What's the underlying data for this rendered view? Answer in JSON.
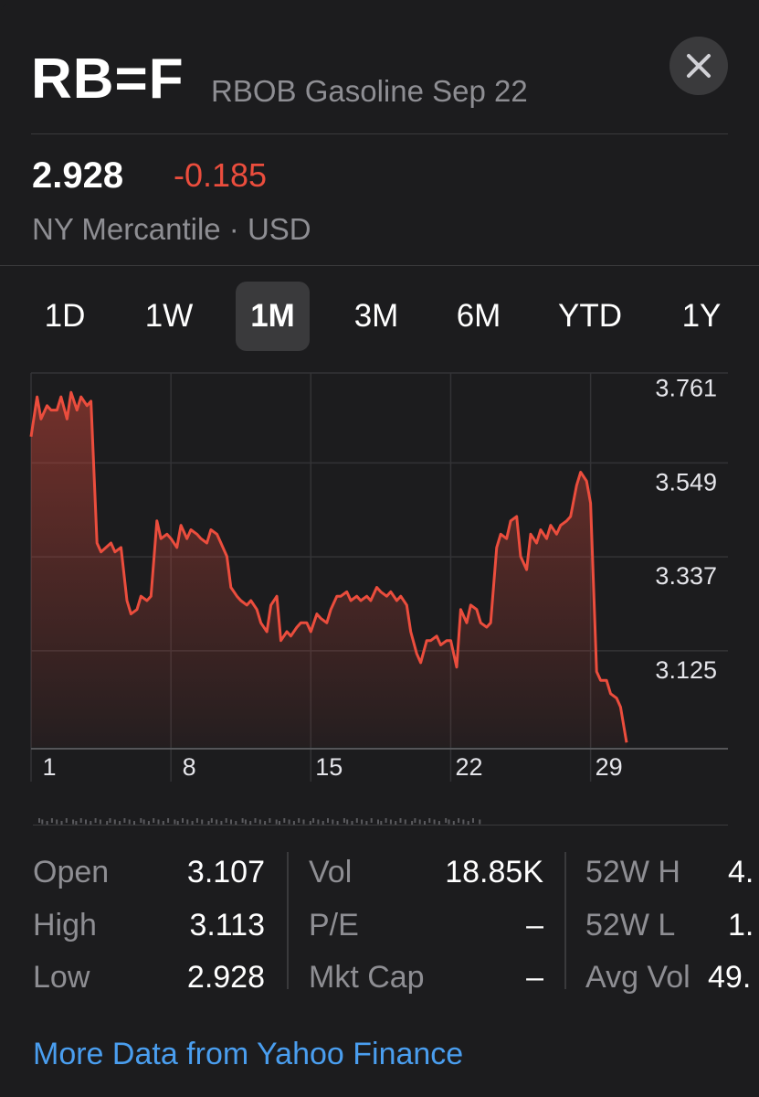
{
  "header": {
    "symbol": "RB=F",
    "name": "RBOB Gasoline Sep 22"
  },
  "quote": {
    "price": "2.928",
    "change": "-0.185",
    "exchange": "NY Mercantile · USD"
  },
  "colors": {
    "background": "#1c1c1e",
    "negative": "#eb4d3d",
    "link": "#4a9eef",
    "secondary_text": "#8e8e93"
  },
  "tabs": [
    {
      "label": "1D",
      "active": false
    },
    {
      "label": "1W",
      "active": false
    },
    {
      "label": "1M",
      "active": true
    },
    {
      "label": "3M",
      "active": false
    },
    {
      "label": "6M",
      "active": false
    },
    {
      "label": "YTD",
      "active": false
    },
    {
      "label": "1Y",
      "active": false
    }
  ],
  "chart_data": {
    "type": "area",
    "y_ticks": [
      "3.761",
      "3.549",
      "3.337",
      "3.125"
    ],
    "x_ticks": [
      "1",
      "8",
      "15",
      "22",
      "29"
    ],
    "ylim": [
      2.97,
      3.82
    ],
    "xlim": [
      0,
      32
    ],
    "series": [
      {
        "color": "#eb4d3d",
        "x": [
          0,
          0.3,
          0.5,
          0.8,
          1.0,
          1.3,
          1.5,
          1.8,
          2.0,
          2.3,
          2.5,
          2.8,
          3.0,
          3.3,
          3.5,
          4.0,
          4.2,
          4.5,
          4.8,
          5.0,
          5.3,
          5.5,
          5.8,
          6.0,
          6.3,
          6.5,
          6.8,
          7.0,
          7.3,
          7.5,
          7.8,
          8.0,
          8.3,
          8.5,
          8.8,
          9.0,
          9.3,
          9.5,
          9.8,
          10.0,
          10.3,
          10.5,
          10.8,
          11.0,
          11.3,
          11.5,
          11.8,
          12.0,
          12.3,
          12.5,
          12.8,
          13.0,
          13.3,
          13.5,
          13.8,
          14.0,
          14.3,
          14.5,
          14.8,
          15.0,
          15.3,
          15.5,
          15.8,
          16.0,
          16.3,
          16.5,
          16.8,
          17.0,
          17.3,
          17.5,
          17.8,
          18.0,
          18.3,
          18.5,
          18.8,
          19.0,
          19.3,
          19.5,
          19.8,
          20.0,
          20.3,
          20.5,
          20.8,
          21.0,
          21.3,
          21.5,
          21.8,
          22.0,
          22.3,
          22.5,
          22.8,
          23.0,
          23.3,
          23.5,
          23.8,
          24.0,
          24.3,
          24.5,
          24.8,
          25.0,
          25.3,
          25.5,
          25.8,
          26.0,
          26.3,
          26.5,
          26.8,
          27.0,
          27.3,
          27.5,
          27.8,
          28.0,
          28.3,
          28.5,
          28.8,
          29.0,
          29.3,
          29.5,
          29.8
        ],
        "values": [
          3.67,
          3.76,
          3.71,
          3.74,
          3.73,
          3.73,
          3.76,
          3.71,
          3.77,
          3.73,
          3.76,
          3.74,
          3.75,
          3.43,
          3.41,
          3.43,
          3.41,
          3.42,
          3.3,
          3.27,
          3.28,
          3.31,
          3.3,
          3.31,
          3.48,
          3.44,
          3.45,
          3.44,
          3.42,
          3.47,
          3.44,
          3.46,
          3.45,
          3.44,
          3.43,
          3.46,
          3.45,
          3.43,
          3.4,
          3.33,
          3.31,
          3.3,
          3.29,
          3.3,
          3.28,
          3.25,
          3.23,
          3.29,
          3.31,
          3.21,
          3.23,
          3.22,
          3.24,
          3.25,
          3.25,
          3.23,
          3.27,
          3.26,
          3.25,
          3.28,
          3.31,
          3.31,
          3.32,
          3.3,
          3.31,
          3.3,
          3.31,
          3.3,
          3.33,
          3.32,
          3.31,
          3.32,
          3.3,
          3.31,
          3.29,
          3.23,
          3.18,
          3.16,
          3.21,
          3.21,
          3.22,
          3.2,
          3.21,
          3.21,
          3.15,
          3.28,
          3.25,
          3.29,
          3.28,
          3.25,
          3.24,
          3.25,
          3.42,
          3.45,
          3.44,
          3.48,
          3.49,
          3.4,
          3.37,
          3.45,
          3.43,
          3.46,
          3.44,
          3.47,
          3.45,
          3.47,
          3.48,
          3.49,
          3.56,
          3.59,
          3.57,
          3.52,
          3.14,
          3.12,
          3.12,
          3.09,
          3.08,
          3.06,
          2.98
        ]
      }
    ]
  },
  "stats": {
    "open_label": "Open",
    "open_value": "3.107",
    "high_label": "High",
    "high_value": "3.113",
    "low_label": "Low",
    "low_value": "2.928",
    "vol_label": "Vol",
    "vol_value": "18.85K",
    "pe_label": "P/E",
    "pe_value": "–",
    "mktcap_label": "Mkt Cap",
    "mktcap_value": "–",
    "w52h_label": "52W H",
    "w52h_value": "4.",
    "w52l_label": "52W L",
    "w52l_value": "1.",
    "avgvol_label": "Avg Vol",
    "avgvol_value": "49."
  },
  "footer": {
    "more_link": "More Data from Yahoo Finance"
  }
}
